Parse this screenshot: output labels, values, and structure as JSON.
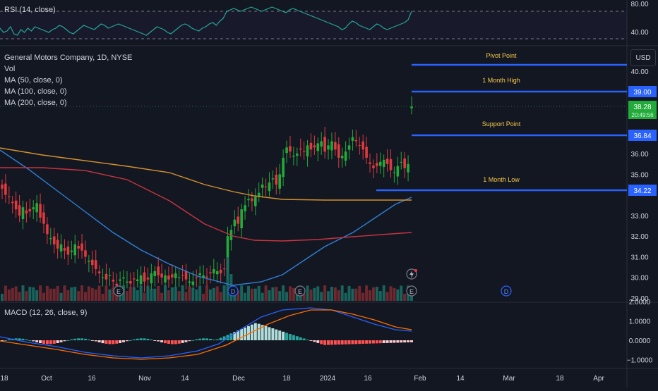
{
  "rsi": {
    "label": "RSI (14, close)",
    "ticks": [
      "80.00",
      "40.00"
    ]
  },
  "main": {
    "legend": [
      "General Motors Company, 1D, NYSE",
      "Vol",
      "MA (50, close, 0)",
      "MA (100, close, 0)",
      "MA (200, close, 0)"
    ],
    "currency_button": "USD",
    "price_ticks": [
      "40.00",
      "36.00",
      "35.00",
      "33.00",
      "32.00",
      "31.00",
      "30.00",
      "29.00"
    ],
    "levels": [
      {
        "name": "Pivot Point",
        "badge": ""
      },
      {
        "name": "1 Month High",
        "badge": "39.00"
      },
      {
        "name": "Support Point",
        "badge": "36.84"
      },
      {
        "name": "1 Month Low",
        "badge": "34.22"
      }
    ],
    "current_price": {
      "value": "38.28",
      "sub": "20:49:56"
    },
    "event_markers": [
      "E",
      "D",
      "E",
      "D",
      "E",
      "D"
    ]
  },
  "macd": {
    "label": "MACD (12, 26, close, 9)",
    "ticks": [
      "2.0000",
      "1.0000",
      "0.0000",
      "−1.0000"
    ]
  },
  "time_axis": [
    "18",
    "Oct",
    "16",
    "Nov",
    "14",
    "Dec",
    "18",
    "2024",
    "16",
    "Feb",
    "14",
    "Mar",
    "18",
    "Apr"
  ],
  "colors": {
    "background": "#131722",
    "up": "#089981",
    "down": "#f23645",
    "up_candle": "#22ab3a",
    "down_candle": "#e0393e",
    "level_line": "#2962ff",
    "ma50": "#2f7fd6",
    "ma100": "#d4912e",
    "ma200": "#c73440",
    "level_label": "#f7c948"
  },
  "chart_data": {
    "type": "candlestick",
    "source": "General Motors Company, 1D, NYSE",
    "price_axis_range": [
      29,
      40.3
    ],
    "levels": {
      "Pivot Point": 40.3,
      "1 Month High": 39.0,
      "Support Point": 36.84,
      "1 Month Low": 34.22
    },
    "closes": [
      34.3,
      34.0,
      33.9,
      33.6,
      33.3,
      33.0,
      33.4,
      33.1,
      33.2,
      33.4,
      33.6,
      32.9,
      32.6,
      32.1,
      31.9,
      31.6,
      31.4,
      31.6,
      31.3,
      31.1,
      31.3,
      31.6,
      31.4,
      31.3,
      31.0,
      30.8,
      30.6,
      30.4,
      30.2,
      30.0,
      29.9,
      30.1,
      29.8,
      29.6,
      29.9,
      30.0,
      29.8,
      29.7,
      29.9,
      29.9,
      30.1,
      29.8,
      29.9,
      30.2,
      30.3,
      30.1,
      30.0,
      30.1,
      29.9,
      30.0,
      30.2,
      30.0,
      30.1,
      29.9,
      29.8,
      29.8,
      30.0,
      30.2,
      30.1,
      30.0,
      30.2,
      30.4,
      30.3,
      30.2,
      30.4,
      32.0,
      32.3,
      32.8,
      32.6,
      33.3,
      33.5,
      33.8,
      33.7,
      33.9,
      34.1,
      34.5,
      34.4,
      34.6,
      34.8,
      34.5,
      35.0,
      35.8,
      36.3,
      36.1,
      35.9,
      36.0,
      36.2,
      36.1,
      36.4,
      36.2,
      36.3,
      36.5,
      36.6,
      36.1,
      36.4,
      36.6,
      36.2,
      35.8,
      35.9,
      36.1,
      36.4,
      36.8,
      36.6,
      36.4,
      36.2,
      35.8,
      35.5,
      35.3,
      35.4,
      35.6,
      35.7,
      35.5,
      35.2,
      35.1,
      35.4,
      35.6,
      35.3,
      35.5,
      38.28
    ],
    "note_values": "Candle closes approximated from the plotted candles and y-axis ticks; MA and MACD values shown as smoothed overlays.",
    "macd_range": [
      -1.2,
      2.1
    ]
  }
}
